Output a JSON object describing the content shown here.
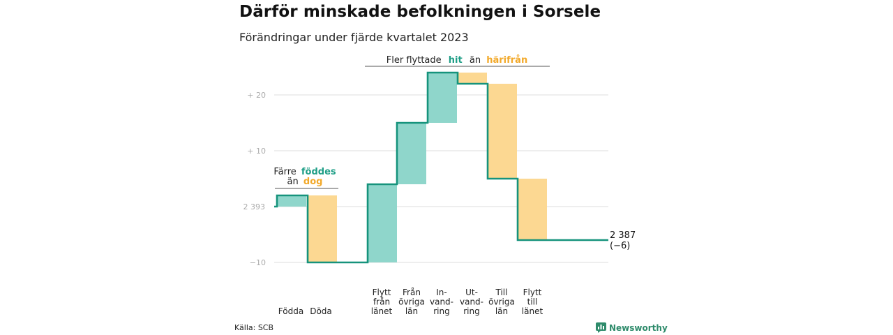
{
  "header": {
    "title": "Därför minskade befolkningen i Sorsele",
    "subtitle": "Förändringar under fjärde kvartalet 2023"
  },
  "footer": {
    "source": "Källa: SCB",
    "brand": "Newsworthy"
  },
  "colors": {
    "increase": "#8fd6cb",
    "decrease": "#fcd892",
    "line": "#16937c",
    "teal_text": "#1e9e86",
    "orange_text": "#f2a92a",
    "grid": "#dddddd"
  },
  "annotations": {
    "births": {
      "line1": "Färre",
      "teal": "föddes",
      "line2": "än",
      "orange": "dog"
    },
    "moves": {
      "prefix": "Fler flyttade",
      "teal": "hit",
      "middle": "än",
      "orange": "härifrån"
    }
  },
  "chart_data": {
    "type": "waterfall",
    "title": "Därför minskade befolkningen i Sorsele",
    "subtitle": "Förändringar under fjärde kvartalet 2023",
    "y_axis": {
      "reference": 2393,
      "ylim": [
        -10,
        24
      ],
      "ticks": [
        {
          "value": 20,
          "label": "+ 20"
        },
        {
          "value": 10,
          "label": "+ 10"
        },
        {
          "value": 0,
          "label": "2 393"
        },
        {
          "value": -10,
          "label": "−10"
        }
      ],
      "grid": true
    },
    "start": {
      "value": 0
    },
    "steps": [
      {
        "label": [
          "Födda"
        ],
        "change": 2,
        "kind": "increase",
        "group": 0
      },
      {
        "label": [
          "Döda"
        ],
        "change": -12,
        "kind": "decrease",
        "group": 0
      },
      {
        "label": [
          "Flytt",
          "från",
          "länet"
        ],
        "change": 14,
        "kind": "increase",
        "group": 1
      },
      {
        "label": [
          "Från",
          "övriga",
          "län"
        ],
        "change": 11,
        "kind": "increase",
        "group": 1
      },
      {
        "label": [
          "In-",
          "vand-",
          "ring"
        ],
        "change": 9,
        "kind": "increase",
        "group": 1
      },
      {
        "label": [
          "Ut-",
          "vand-",
          "ring"
        ],
        "change": -2,
        "kind": "decrease",
        "group": 1
      },
      {
        "label": [
          "Till",
          "övriga",
          "län"
        ],
        "change": -17,
        "kind": "decrease",
        "group": 1
      },
      {
        "label": [
          "Flytt",
          "till",
          "länet"
        ],
        "change": -11,
        "kind": "decrease",
        "group": 1
      }
    ],
    "end": {
      "value": -6,
      "label_line1": "2 387",
      "label_line2": "(−6)"
    },
    "source": "Källa: SCB"
  }
}
